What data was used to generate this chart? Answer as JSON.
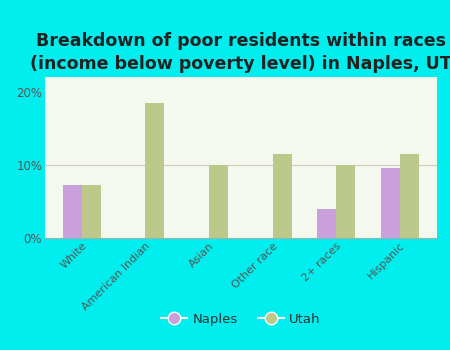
{
  "title": "Breakdown of poor residents within races\n(income below poverty level) in Naples, UT",
  "categories": [
    "White",
    "American Indian",
    "Asian",
    "Other race",
    "2+ races",
    "Hispanic"
  ],
  "naples_values": [
    7.2,
    0,
    0,
    0,
    4.0,
    9.5
  ],
  "utah_values": [
    7.2,
    18.5,
    10.0,
    11.5,
    10.0,
    11.5
  ],
  "naples_color": "#c9a0dc",
  "utah_color": "#bdc98a",
  "background_color": "#00eeee",
  "plot_bg_top": "#f5f8ee",
  "plot_bg_bottom": "#d8e8c0",
  "title_fontsize": 12.5,
  "ylim": [
    0,
    22
  ],
  "yticks": [
    0,
    10,
    20
  ],
  "ytick_labels": [
    "0%",
    "10%",
    "20%"
  ],
  "legend_labels": [
    "Naples",
    "Utah"
  ],
  "bar_width": 0.3
}
